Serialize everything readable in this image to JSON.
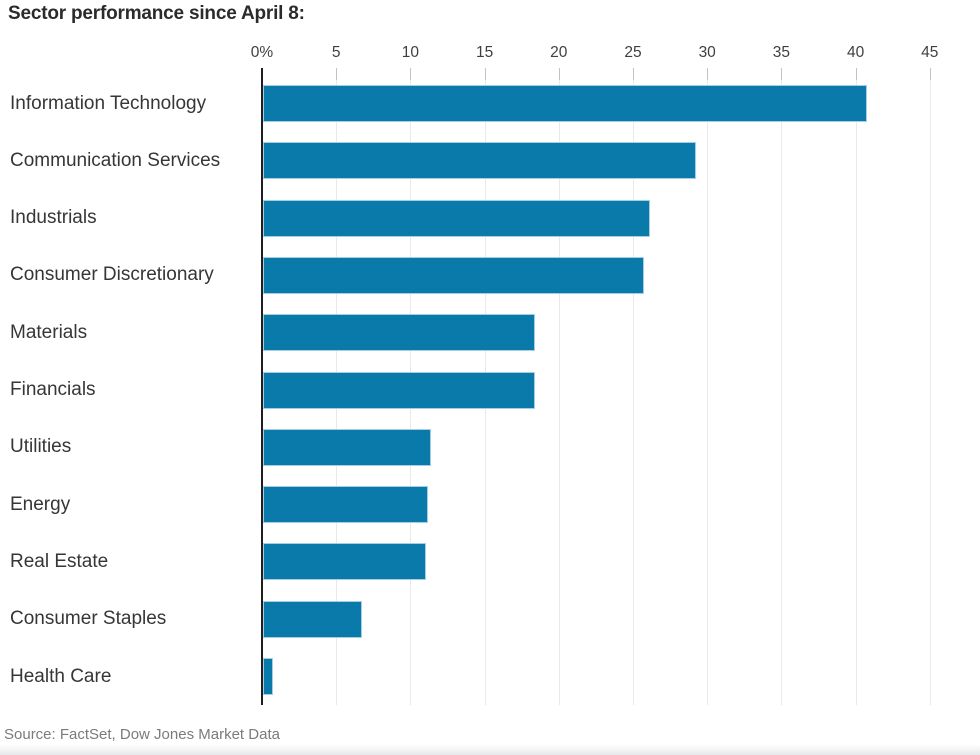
{
  "title": "Sector performance since April 8:",
  "source": "Source: FactSet, Dow Jones Market Data",
  "colors": {
    "bar": "#0a7aab",
    "bar_edge": "#a5cde4",
    "axis_line": "#1f1f1f",
    "gridline": "#e9e9e9",
    "tick": "#c3c3c3",
    "title_text": "#2b2b2b",
    "category_text": "#363636",
    "axis_text": "#3f3f3f",
    "source_text": "#7b7b7b"
  },
  "chart_data": {
    "type": "bar",
    "orientation": "horizontal",
    "title": "Sector performance since April 8:",
    "categories": [
      "Information Technology",
      "Communication Services",
      "Industrials",
      "Consumer Discretionary",
      "Materials",
      "Financials",
      "Utilities",
      "Energy",
      "Real Estate",
      "Consumer Staples",
      "Health Care"
    ],
    "values": [
      40.7,
      29.2,
      26.1,
      25.7,
      18.3,
      18.3,
      11.3,
      11.1,
      11.0,
      6.7,
      0.7
    ],
    "unit": "%",
    "x_tick_labels": [
      "0%",
      "5",
      "10",
      "15",
      "20",
      "25",
      "30",
      "35",
      "40",
      "45"
    ],
    "x_tick_values": [
      0,
      5,
      10,
      15,
      20,
      25,
      30,
      35,
      40,
      45
    ],
    "xlim": [
      0,
      45
    ],
    "grid": true,
    "legend": "none",
    "source": "Source: FactSet, Dow Jones Market Data"
  }
}
